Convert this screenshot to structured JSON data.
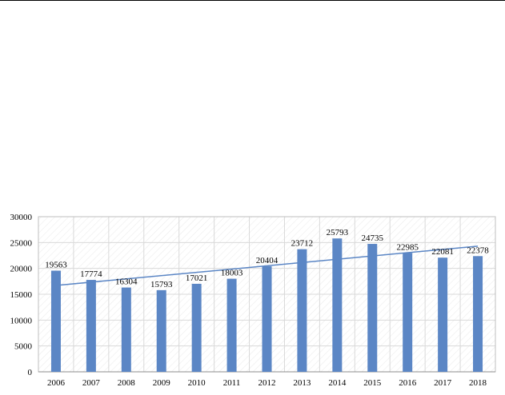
{
  "chart_data": {
    "type": "bar",
    "categories": [
      "2006",
      "2007",
      "2008",
      "2009",
      "2010",
      "2011",
      "2012",
      "2013",
      "2014",
      "2015",
      "2016",
      "2017",
      "2018"
    ],
    "series": [
      {
        "values": [
          19563,
          17774,
          16304,
          15793,
          17021,
          18003,
          20404,
          23712,
          25793,
          24735,
          22985,
          22081,
          22378
        ]
      }
    ],
    "trendline": {
      "type": "linear"
    },
    "title": "",
    "xlabel": "",
    "ylabel": "",
    "ylim": [
      0,
      30000
    ],
    "yticks": [
      0,
      5000,
      10000,
      15000,
      20000,
      25000,
      30000
    ],
    "grid": true,
    "legend": "none",
    "colors": {
      "bar": "#5b86c5",
      "trend": "#5b86c5",
      "grid": "#d9d9d9",
      "axis": "#bfbfbf"
    }
  }
}
